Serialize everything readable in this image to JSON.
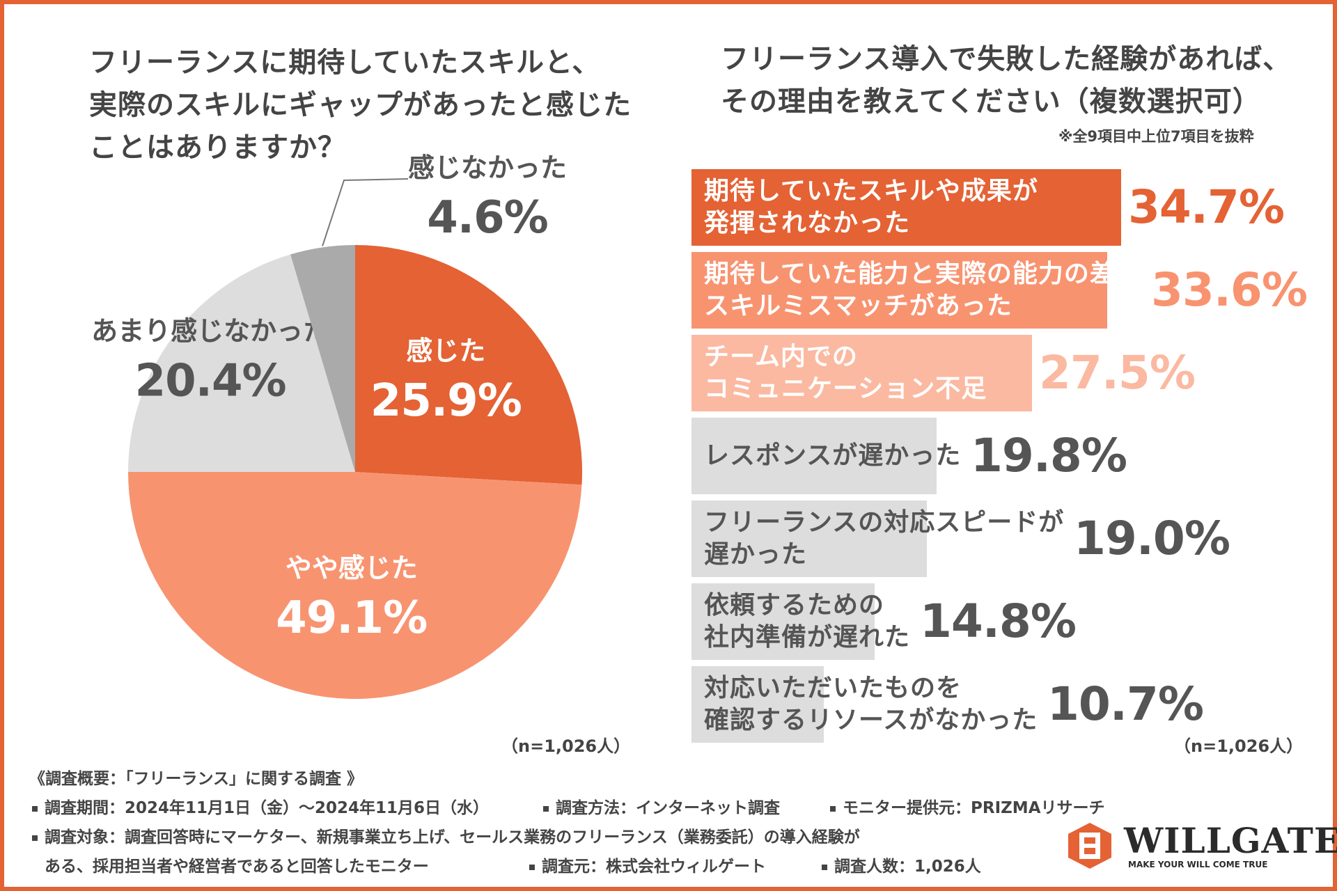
{
  "left_title": [
    "フリーランスに期待していたスキルと、",
    "実際のスキルにギャップがあったと感じた",
    "ことはありますか？"
  ],
  "right_title": [
    "フリーランス導入で失敗した経験があれば、",
    "その理由を教えてください（複数選択可）"
  ],
  "right_note": "※全9項目中上位7項目を抜粋",
  "colors": {
    "accent": "#E46234",
    "orange_light": "#F89370",
    "orange_pale": "#FBB9A1",
    "gray_mid": "#AAAAAA",
    "gray_light": "#DDDDDD",
    "text_dark": "#555555",
    "border": "#E46234"
  },
  "chart_data": [
    {
      "type": "pie",
      "title": "フリーランスに期待していたスキルと、実際のスキルにギャップがあったと感じたことはありますか？",
      "slices": [
        {
          "label": "感じた",
          "value": 25.9,
          "display": "25.9%",
          "color": "#E46234"
        },
        {
          "label": "やや感じた",
          "value": 49.1,
          "display": "49.1%",
          "color": "#F89370"
        },
        {
          "label": "あまり感じなかった",
          "value": 20.4,
          "display": "20.4%",
          "color": "#DDDDDD"
        },
        {
          "label": "感じなかった",
          "value": 4.6,
          "display": "4.6%",
          "color": "#AAAAAA"
        }
      ],
      "n_note": "（n=1,026人）"
    },
    {
      "type": "bar",
      "orientation": "horizontal",
      "title": "フリーランス導入で失敗した経験があれば、その理由を教えてください（複数選択可）",
      "categories": [
        [
          "期待していたスキルや成果が",
          "発揮されなかった"
        ],
        [
          "期待していた能力と実際の能力の差の",
          "スキルミスマッチがあった"
        ],
        [
          "チーム内での",
          "コミュニケーション不足"
        ],
        [
          "レスポンスが遅かった"
        ],
        [
          "フリーランスの対応スピードが",
          "遅かった"
        ],
        [
          "依頼するための",
          "社内準備が遅れた"
        ],
        [
          "対応いただいたものを",
          "確認するリソースがなかった"
        ]
      ],
      "values": [
        34.7,
        33.6,
        27.5,
        19.8,
        19.0,
        14.8,
        10.7
      ],
      "value_labels": [
        "34.7%",
        "33.6%",
        "27.5%",
        "19.8%",
        "19.0%",
        "14.8%",
        "10.7%"
      ],
      "bar_colors": [
        "#E46234",
        "#F89370",
        "#FBB9A1",
        "#DDDDDD",
        "#DDDDDD",
        "#DDDDDD",
        "#DDDDDD"
      ],
      "label_colors": [
        "#FFFFFF",
        "#FFFFFF",
        "#FFFFFF",
        "#555555",
        "#555555",
        "#555555",
        "#555555"
      ],
      "value_colors": [
        "#E46234",
        "#F89370",
        "#FBB9A1",
        "#555555",
        "#555555",
        "#555555",
        "#555555"
      ],
      "n_note": "（n=1,026人）"
    }
  ],
  "footer": {
    "heading": "《調査概要：「フリーランス」に関する調査 》",
    "period": "調査期間：2024年11月1日（金）～2024年11月6日（水）",
    "method": "調査方法：インターネット調査",
    "provider": "モニター提供元：PRIZMAリサーチ",
    "target_line1": "調査対象：調査回答時にマーケター、新規事業立ち上げ、セールス業務のフリーランス（業務委託）の導入経験が",
    "target_line2": "ある、採用担当者や経営者であると回答したモニター",
    "source": "調査元：株式会社ウィルゲート",
    "respondents": "調査人数：1,026人"
  },
  "logo": {
    "name": "WILLGATE",
    "tagline": "MAKE YOUR WILL COME TRUE",
    "icon": "willgate-logo-mark-icon"
  }
}
